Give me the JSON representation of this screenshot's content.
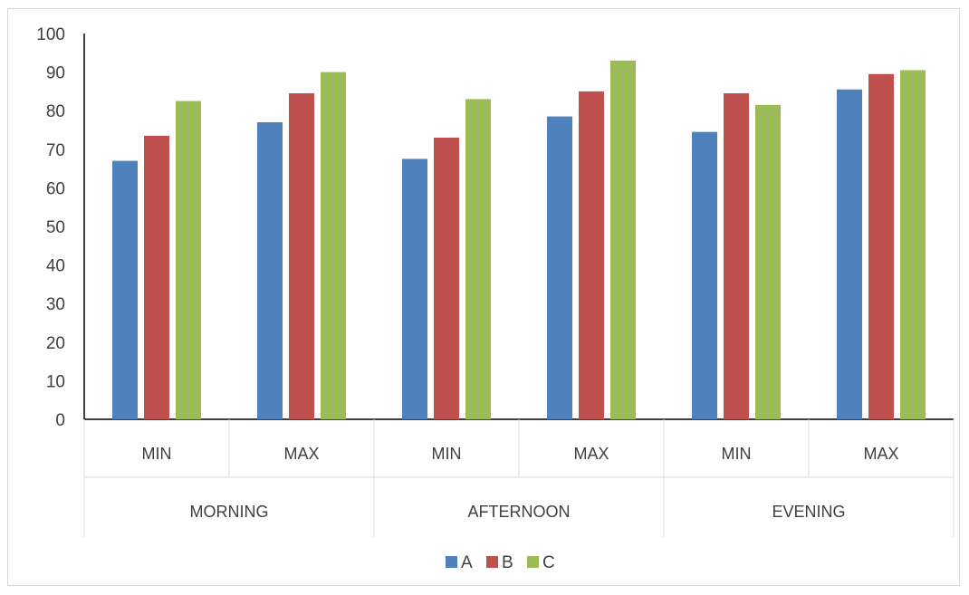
{
  "chart_data": {
    "type": "bar",
    "title": "",
    "xlabel": "",
    "ylabel": "",
    "ylim": [
      0,
      100
    ],
    "yticks": [
      0,
      10,
      20,
      30,
      40,
      50,
      60,
      70,
      80,
      90,
      100
    ],
    "groups": [
      "MORNING",
      "AFTERNOON",
      "EVENING"
    ],
    "categories": [
      "MIN",
      "MAX",
      "MIN",
      "MAX",
      "MIN",
      "MAX"
    ],
    "series": [
      {
        "name": "A",
        "color": "#4F81BD",
        "values": [
          67,
          77,
          67.5,
          78.5,
          74.5,
          85.5
        ]
      },
      {
        "name": "B",
        "color": "#C0504D",
        "values": [
          73.5,
          84.5,
          73,
          85,
          84.5,
          89.5
        ]
      },
      {
        "name": "C",
        "color": "#9BBB59",
        "values": [
          82.5,
          90,
          83,
          93,
          81.5,
          90.5
        ]
      }
    ],
    "legend": "bottom",
    "grid": false
  }
}
